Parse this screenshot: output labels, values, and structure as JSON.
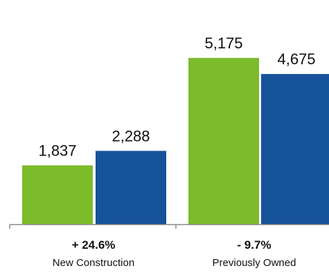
{
  "chart_data": {
    "type": "bar",
    "categories": [
      "New Construction",
      "Previously Owned"
    ],
    "category_changes": [
      "+ 24.6%",
      "- 9.7%"
    ],
    "series": [
      {
        "values": [
          1837,
          2288
        ]
      },
      {
        "values": [
          5175,
          4675
        ]
      }
    ],
    "value_labels": [
      [
        "1,837",
        "2,288"
      ],
      [
        "5,175",
        "4,675"
      ]
    ],
    "bar_colors": [
      "#7cbb2a",
      "#16539a"
    ],
    "axis_color": "#888888",
    "ylim": [
      0,
      5900
    ],
    "grid": false,
    "legend": "none",
    "title": "",
    "xlabel": "",
    "ylabel": ""
  }
}
